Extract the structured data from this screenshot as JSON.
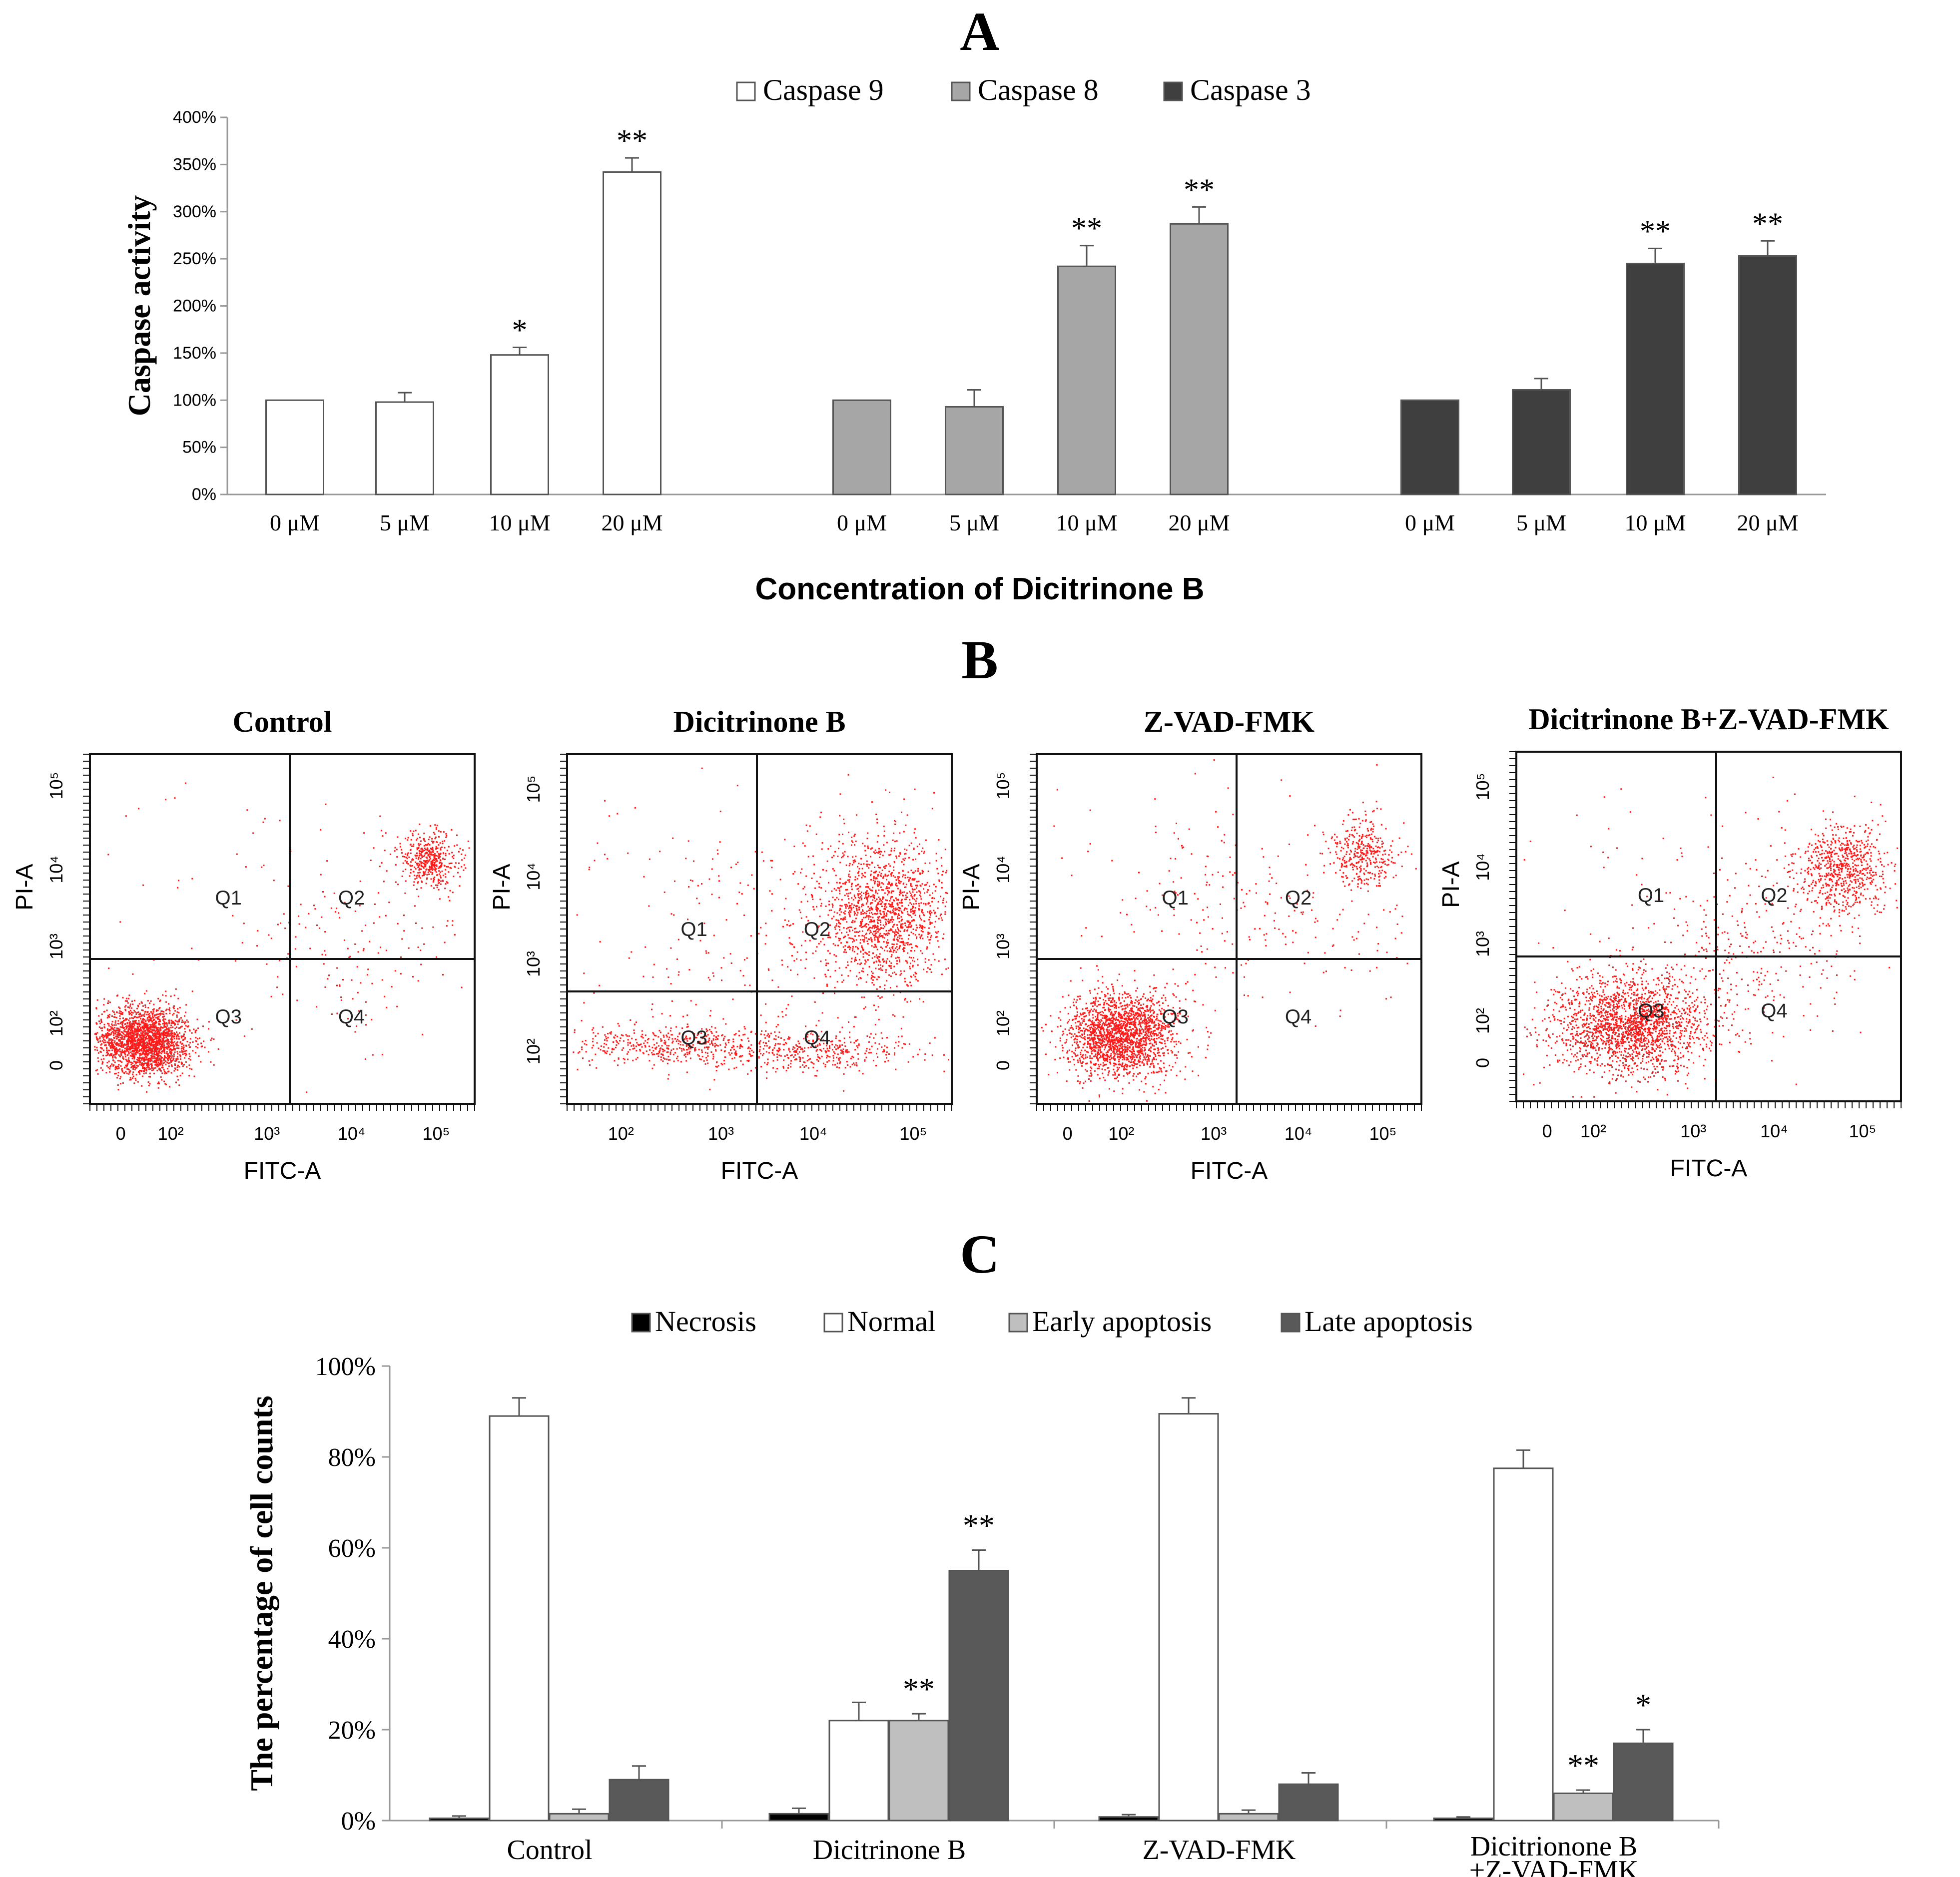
{
  "panel_labels": {
    "a": "A",
    "b": "B",
    "c": "C"
  },
  "chart_data": [
    {
      "id": "A",
      "type": "bar",
      "title": "A",
      "xlabel": "Concentration of Dicitrinone B",
      "ylabel": "Caspase activity",
      "ylim": [
        0,
        400
      ],
      "yticks": [
        "0%",
        "50%",
        "100%",
        "150%",
        "200%",
        "250%",
        "300%",
        "350%",
        "400%"
      ],
      "legend": [
        "Caspase 9",
        "Caspase 8",
        "Caspase 3"
      ],
      "colors": [
        "#ffffff",
        "#a6a6a6",
        "#3f3f3f"
      ],
      "groups": [
        {
          "name": "Caspase 9",
          "categories": [
            "0 μM",
            "5 μM",
            "10 μM",
            "20 μM"
          ],
          "values": [
            100,
            98,
            148,
            342
          ],
          "errors": [
            0,
            10,
            8,
            15
          ],
          "sig": [
            "",
            "",
            "*",
            "**"
          ]
        },
        {
          "name": "Caspase 8",
          "categories": [
            "0 μM",
            "5 μM",
            "10 μM",
            "20 μM"
          ],
          "values": [
            100,
            93,
            242,
            287
          ],
          "errors": [
            0,
            18,
            22,
            18
          ],
          "sig": [
            "",
            "",
            "**",
            "**"
          ]
        },
        {
          "name": "Caspase 3",
          "categories": [
            "0 μM",
            "5 μM",
            "10 μM",
            "20 μM"
          ],
          "values": [
            100,
            111,
            245,
            253
          ],
          "errors": [
            0,
            12,
            16,
            16
          ],
          "sig": [
            "",
            "",
            "**",
            "**"
          ]
        }
      ]
    },
    {
      "id": "B",
      "type": "scatter",
      "title": "B",
      "xlabel": "FITC-A",
      "ylabel": "PI-A",
      "quadrant_labels": [
        "Q1",
        "Q2",
        "Q3",
        "Q4"
      ],
      "x_ticks": [
        "0",
        "10²",
        "10³",
        "10⁴",
        "10⁵"
      ],
      "y_ticks": [
        "0",
        "10²",
        "10³",
        "10⁴",
        "10⁵"
      ],
      "plots": [
        "Control",
        "Dicitrinone B",
        "Z-VAD-FMK",
        "Dicitrinone B+Z-VAD-FMK"
      ]
    },
    {
      "id": "C",
      "type": "bar",
      "title": "C",
      "ylabel": "The percentage of cell counts",
      "ylim": [
        0,
        100
      ],
      "yticks": [
        "0%",
        "20%",
        "40%",
        "60%",
        "80%",
        "100%"
      ],
      "categories": [
        "Control",
        "Dicitrinone B",
        "Z-VAD-FMK",
        "Dicitrionone B\n+Z-VAD-FMK"
      ],
      "series": [
        {
          "name": "Necrosis",
          "color": "#000000",
          "values": [
            0.5,
            1.5,
            0.8,
            0.5
          ],
          "errors": [
            0.5,
            1.2,
            0.5,
            0.3
          ],
          "sig": [
            "",
            "",
            "",
            ""
          ]
        },
        {
          "name": "Normal",
          "color": "#ffffff",
          "values": [
            89,
            22,
            89.5,
            77.5
          ],
          "errors": [
            4,
            4,
            3.5,
            4
          ],
          "sig": [
            "",
            "",
            "",
            ""
          ]
        },
        {
          "name": "Early apoptosis",
          "color": "#bfbfbf",
          "values": [
            1.5,
            22,
            1.5,
            6
          ],
          "errors": [
            1,
            1.5,
            0.8,
            0.7
          ],
          "sig": [
            "",
            "**",
            "",
            "**"
          ]
        },
        {
          "name": "Late  apoptosis",
          "color": "#595959",
          "values": [
            9,
            55,
            8,
            17
          ],
          "errors": [
            3,
            4.5,
            2.5,
            3
          ],
          "sig": [
            "",
            "**",
            "",
            "*"
          ]
        }
      ]
    }
  ]
}
